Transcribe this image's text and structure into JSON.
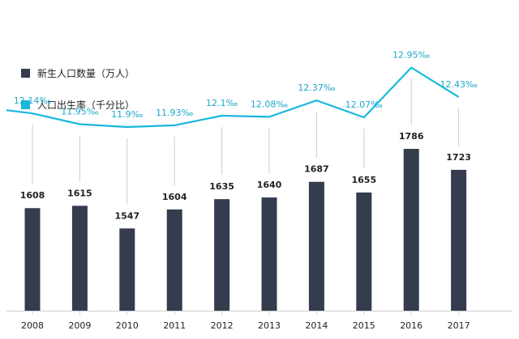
{
  "chart_data": {
    "type": "bar",
    "title": "",
    "categories": [
      "2008",
      "2009",
      "2010",
      "2011",
      "2012",
      "2013",
      "2014",
      "2015",
      "2016",
      "2017"
    ],
    "series": [
      {
        "name": "新生人口数量（万人）",
        "kind": "bar",
        "color": "#343c4e",
        "values": [
          1608,
          1615,
          1547,
          1604,
          1635,
          1640,
          1687,
          1655,
          1786,
          1723
        ],
        "labels": [
          "1608",
          "1615",
          "1547",
          "1604",
          "1635",
          "1640",
          "1687",
          "1655",
          "1786",
          "1723"
        ]
      },
      {
        "name": "人口出生率（千分比）",
        "kind": "line",
        "color": "#1ab8dc",
        "values": [
          12.14,
          11.95,
          11.9,
          11.93,
          12.1,
          12.08,
          12.37,
          12.07,
          12.95,
          12.43
        ],
        "labels": [
          "12.14‰",
          "11.95‰",
          "11.9‰",
          "11.93‰",
          "12.1‰",
          "12.08‰",
          "12.37‰",
          "12.07‰",
          "12.95‰",
          "12.43‰"
        ]
      }
    ],
    "xlabel": "",
    "ylabel": "",
    "bar_ylim": [
      1300,
      1820
    ],
    "rate_ylim": [
      11.0,
      13.2
    ],
    "grid": false,
    "legend_position": "top-left"
  }
}
